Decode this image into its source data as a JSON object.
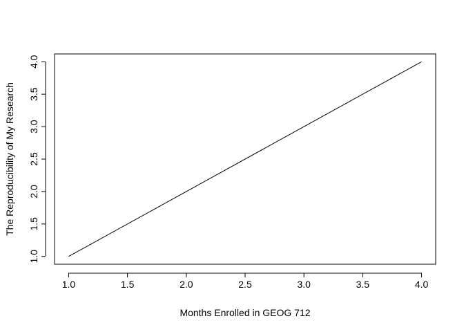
{
  "chart_data": {
    "type": "line",
    "title": "",
    "xlabel": "Months Enrolled in GEOG 712",
    "ylabel": "The Reproducibility of My Research",
    "xlim": [
      0.88,
      4.12
    ],
    "ylim": [
      0.88,
      4.12
    ],
    "x_ticks": [
      1.0,
      1.5,
      2.0,
      2.5,
      3.0,
      3.5,
      4.0
    ],
    "x_tick_labels": [
      "1.0",
      "1.5",
      "2.0",
      "2.5",
      "3.0",
      "3.5",
      "4.0"
    ],
    "y_ticks": [
      1.0,
      1.5,
      2.0,
      2.5,
      3.0,
      3.5,
      4.0
    ],
    "y_tick_labels": [
      "1.0",
      "1.5",
      "2.0",
      "2.5",
      "3.0",
      "3.5",
      "4.0"
    ],
    "grid": false,
    "legend": "none",
    "series": [
      {
        "color": "#000000",
        "x": [
          1,
          2,
          3,
          4
        ],
        "y": [
          1,
          2,
          3,
          4
        ]
      }
    ]
  }
}
